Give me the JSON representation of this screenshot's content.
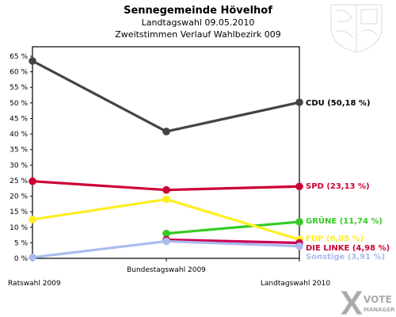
{
  "chart_data": {
    "type": "line",
    "title": "Sennegemeinde Hövelhof",
    "subtitle1": "Landtagswahl 09.05.2010",
    "subtitle2": "Zweitstimmen Verlauf Wahlbezirk 009",
    "categories": [
      "Ratswahl 2009",
      "Bundestagswahl 2009",
      "Landtagswahl 2010"
    ],
    "ylim": [
      0,
      65
    ],
    "yticks": [
      "0 %",
      "5 %",
      "10 %",
      "15 %",
      "20 %",
      "25 %",
      "30 %",
      "35 %",
      "40 %",
      "45 %",
      "50 %",
      "55 %",
      "60 %",
      "65 %"
    ],
    "ytick_values": [
      0,
      5,
      10,
      15,
      20,
      25,
      30,
      35,
      40,
      45,
      50,
      55,
      60,
      65
    ],
    "grid": false,
    "series": [
      {
        "id": "cdu",
        "label": "CDU (50,18 %)",
        "color": "#444444",
        "label_color": "#000000",
        "values": [
          63.5,
          40.8,
          50.18
        ]
      },
      {
        "id": "spd",
        "label": "SPD (23,13 %)",
        "color": "#cc0033",
        "label_color": "#cc0033",
        "values": [
          24.8,
          22.0,
          23.13
        ]
      },
      {
        "id": "gruene",
        "label": "GRÜNE (11,74 %)",
        "color": "#33cc22",
        "label_color": "#33cc22",
        "values": [
          null,
          8.0,
          11.74
        ]
      },
      {
        "id": "fdp",
        "label": "FDP (6,05 %)",
        "color": "#ffee22",
        "label_color": "#ffee22",
        "values": [
          12.5,
          19.0,
          6.05
        ]
      },
      {
        "id": "linke",
        "label": "DIE LINKE (4,98 %)",
        "color": "#cc0055",
        "label_color": "#cc0033",
        "values": [
          null,
          6.0,
          4.98
        ]
      },
      {
        "id": "sonstige",
        "label": "Sonstige (3,91 %)",
        "color": "#aabbee",
        "label_color": "#aabbee",
        "values": [
          0.3,
          5.5,
          3.91
        ]
      }
    ]
  },
  "branding": {
    "logo_line1": "VOTE",
    "logo_line2": "MANAGER"
  }
}
